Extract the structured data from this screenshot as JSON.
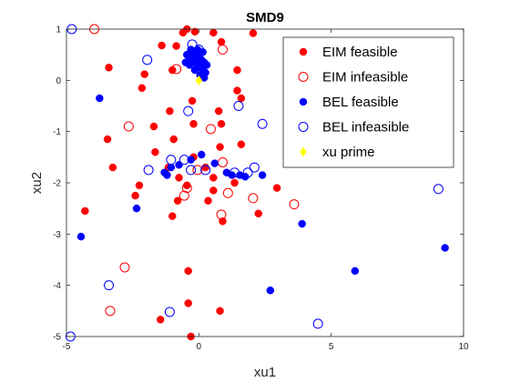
{
  "chart_data": {
    "type": "scatter",
    "title": "SMD9",
    "xlabel": "xu1",
    "ylabel": "xu2",
    "xlim": [
      -5,
      10
    ],
    "ylim": [
      -5,
      1
    ],
    "xticks": [
      -5,
      0,
      5,
      10
    ],
    "yticks": [
      -5,
      -4,
      -3,
      -2,
      -1,
      0,
      1
    ],
    "grid": false,
    "legend_position": "top-right",
    "series": [
      {
        "name": "EIM feasible",
        "marker": "filled-circle",
        "color": "#ff0000",
        "points": [
          [
            -0.6,
            0.93
          ],
          [
            -0.45,
            1.0
          ],
          [
            -0.15,
            0.95
          ],
          [
            0.55,
            0.93
          ],
          [
            2.05,
            0.92
          ],
          [
            -1.4,
            0.68
          ],
          [
            -0.85,
            0.67
          ],
          [
            0.85,
            0.75
          ],
          [
            -3.4,
            0.25
          ],
          [
            -1.0,
            0.2
          ],
          [
            -2.05,
            0.12
          ],
          [
            1.45,
            0.2
          ],
          [
            -2.15,
            -0.15
          ],
          [
            1.45,
            -0.2
          ],
          [
            1.6,
            -0.35
          ],
          [
            -0.25,
            -0.4
          ],
          [
            -1.1,
            -0.6
          ],
          [
            0.75,
            -0.6
          ],
          [
            -1.7,
            -0.9
          ],
          [
            -0.2,
            -0.85
          ],
          [
            0.85,
            -0.85
          ],
          [
            -3.45,
            -1.15
          ],
          [
            -0.95,
            -1.15
          ],
          [
            0.8,
            -1.3
          ],
          [
            1.6,
            -1.25
          ],
          [
            -1.65,
            -1.4
          ],
          [
            -0.2,
            -1.5
          ],
          [
            -3.25,
            -1.7
          ],
          [
            -1.15,
            -1.7
          ],
          [
            0.25,
            -1.7
          ],
          [
            -2.25,
            -2.05
          ],
          [
            -0.75,
            -1.9
          ],
          [
            0.55,
            -1.9
          ],
          [
            -2.4,
            -2.25
          ],
          [
            -0.45,
            -2.05
          ],
          [
            0.55,
            -2.15
          ],
          [
            1.35,
            -2.0
          ],
          [
            2.95,
            -2.1
          ],
          [
            -0.8,
            -2.35
          ],
          [
            0.35,
            -2.35
          ],
          [
            -4.3,
            -2.55
          ],
          [
            -1.0,
            -2.65
          ],
          [
            2.25,
            -2.6
          ],
          [
            0.9,
            -2.75
          ],
          [
            -0.4,
            -3.72
          ],
          [
            -0.4,
            -4.35
          ],
          [
            0.8,
            -4.5
          ],
          [
            -1.45,
            -4.67
          ],
          [
            -0.3,
            -5.0
          ]
        ]
      },
      {
        "name": "EIM infeasible",
        "marker": "open-circle",
        "color": "#ff0000",
        "points": [
          [
            -3.95,
            1.0
          ],
          [
            0.9,
            0.6
          ],
          [
            -0.85,
            0.22
          ],
          [
            -2.65,
            -0.9
          ],
          [
            0.45,
            -0.95
          ],
          [
            0.9,
            -1.6
          ],
          [
            -0.45,
            -2.1
          ],
          [
            -0.55,
            -2.25
          ],
          [
            -0.05,
            -1.75
          ],
          [
            1.1,
            -2.2
          ],
          [
            2.05,
            -2.3
          ],
          [
            3.6,
            -2.42
          ],
          [
            0.85,
            -2.62
          ],
          [
            -2.8,
            -3.65
          ],
          [
            -3.35,
            -4.5
          ]
        ]
      },
      {
        "name": "BEL feasible",
        "marker": "filled-circle",
        "color": "#0000ff",
        "points": [
          [
            -0.45,
            0.5
          ],
          [
            -0.35,
            0.45
          ],
          [
            -0.25,
            0.4
          ],
          [
            -0.15,
            0.35
          ],
          [
            -0.05,
            0.3
          ],
          [
            0.05,
            0.25
          ],
          [
            0.15,
            0.2
          ],
          [
            0.25,
            0.15
          ],
          [
            -0.3,
            0.6
          ],
          [
            -0.2,
            0.55
          ],
          [
            -0.1,
            0.5
          ],
          [
            0.0,
            0.45
          ],
          [
            0.1,
            0.4
          ],
          [
            0.2,
            0.35
          ],
          [
            0.3,
            0.3
          ],
          [
            -0.35,
            0.3
          ],
          [
            -0.15,
            0.2
          ],
          [
            0.05,
            0.1
          ],
          [
            0.2,
            0.05
          ],
          [
            -0.5,
            0.35
          ],
          [
            -0.05,
            0.6
          ],
          [
            0.15,
            0.55
          ],
          [
            -3.75,
            -0.35
          ],
          [
            0.1,
            -1.45
          ],
          [
            -0.3,
            -1.55
          ],
          [
            -0.75,
            -1.65
          ],
          [
            -1.05,
            -1.7
          ],
          [
            -1.3,
            -1.8
          ],
          [
            -1.2,
            -1.85
          ],
          [
            0.6,
            -1.62
          ],
          [
            1.05,
            -1.8
          ],
          [
            1.25,
            -1.85
          ],
          [
            1.55,
            -1.85
          ],
          [
            1.75,
            -1.88
          ],
          [
            2.4,
            -1.85
          ],
          [
            -2.35,
            -2.5
          ],
          [
            3.9,
            -2.8
          ],
          [
            -4.45,
            -3.05
          ],
          [
            9.3,
            -3.27
          ],
          [
            5.9,
            -3.72
          ],
          [
            2.7,
            -4.1
          ]
        ]
      },
      {
        "name": "BEL infeasible",
        "marker": "open-circle",
        "color": "#0000ff",
        "points": [
          [
            -4.8,
            1.0
          ],
          [
            -0.25,
            0.7
          ],
          [
            0.0,
            0.6
          ],
          [
            -1.95,
            0.4
          ],
          [
            -0.4,
            -0.6
          ],
          [
            1.5,
            -0.5
          ],
          [
            2.4,
            -0.85
          ],
          [
            -1.9,
            -1.75
          ],
          [
            -1.05,
            -1.55
          ],
          [
            -0.55,
            -1.55
          ],
          [
            -0.3,
            -1.75
          ],
          [
            0.25,
            -1.75
          ],
          [
            1.35,
            -1.8
          ],
          [
            1.85,
            -1.8
          ],
          [
            2.1,
            -1.7
          ],
          [
            9.05,
            -2.12
          ],
          [
            -3.4,
            -4.0
          ],
          [
            -1.1,
            -4.52
          ],
          [
            4.5,
            -4.75
          ],
          [
            -4.85,
            -5.0
          ]
        ]
      },
      {
        "name": "xu prime",
        "marker": "filled-diamond",
        "color": "#ffff00",
        "points": [
          [
            0.0,
            0.0
          ]
        ]
      }
    ]
  }
}
